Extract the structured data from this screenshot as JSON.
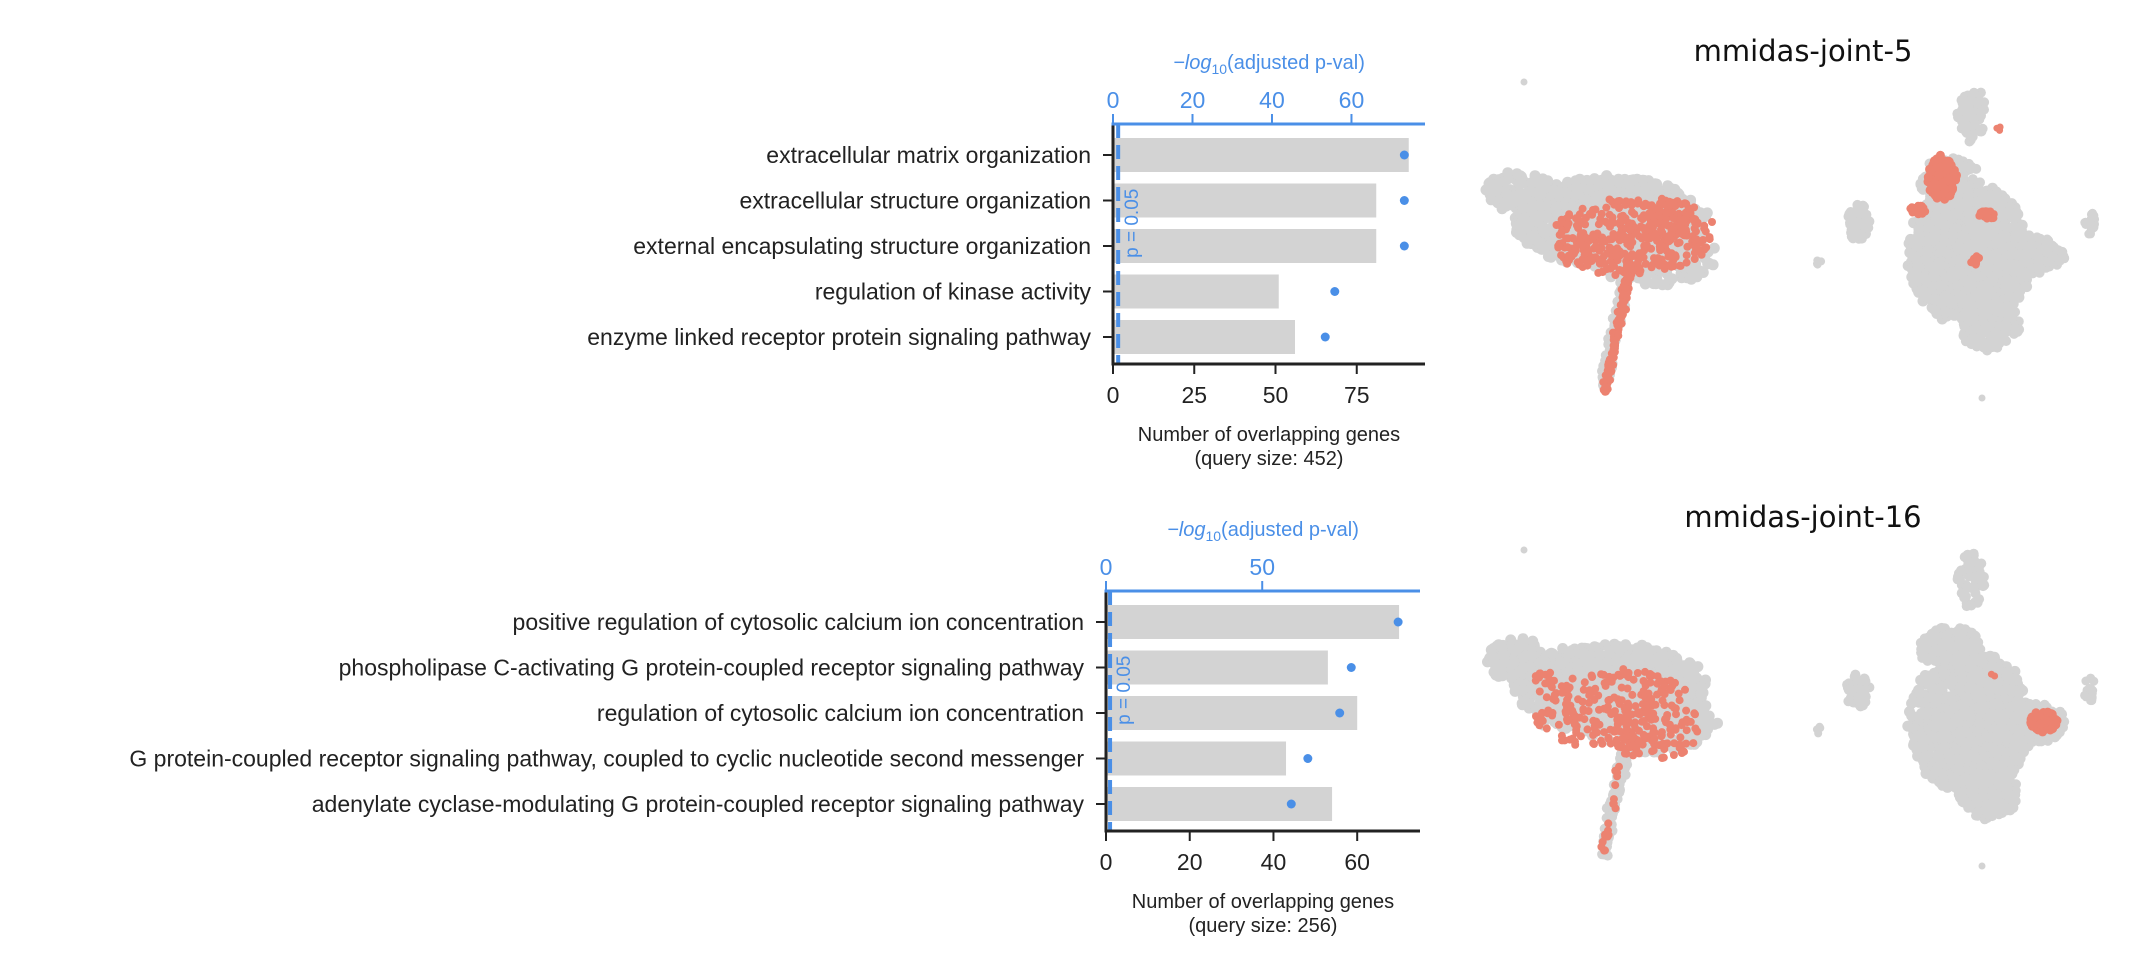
{
  "chart_data": [
    {
      "type": "bar",
      "categories": [
        "extracellular matrix organization",
        "extracellular structure organization",
        "external encapsulating structure organization",
        "regulation of kinase activity",
        "enzyme linked receptor protein signaling pathway"
      ],
      "values": [
        91,
        81,
        81,
        51,
        56
      ],
      "xlabel": "Number of overlapping genes",
      "xlabel_note": "(query size: 452)",
      "xlim": [
        0,
        96
      ],
      "xticks": [
        0,
        25,
        50,
        75
      ],
      "secondary_axis": {
        "label_prefix": "−log",
        "label_sub": "10",
        "label_suffix": "(adjusted p-val)",
        "xlim": [
          0,
          78.5
        ],
        "xticks": [
          0,
          20,
          40,
          60
        ],
        "values": [
          73.3,
          73.3,
          73.3,
          55.8,
          53.4
        ],
        "threshold_value": 1.3,
        "threshold_label": "p = 0.05",
        "color": "#4a8fe7"
      },
      "bar_color": "#d3d3d3",
      "grid": false
    },
    {
      "type": "bar",
      "categories": [
        "positive regulation of cytosolic calcium ion concentration",
        "phospholipase C-activating G protein-coupled receptor signaling pathway",
        "regulation of cytosolic calcium ion concentration",
        "G protein-coupled receptor signaling pathway, coupled to cyclic nucleotide second messenger",
        "adenylate cyclase-modulating G protein-coupled receptor signaling pathway"
      ],
      "values": [
        70,
        53,
        60,
        43,
        54
      ],
      "xlabel": "Number of overlapping genes",
      "xlabel_note": "(query size: 256)",
      "xlim": [
        0,
        75
      ],
      "xticks": [
        0,
        20,
        40,
        60
      ],
      "secondary_axis": {
        "label_prefix": "−log",
        "label_sub": "10",
        "label_suffix": "(adjusted p-val)",
        "xlim": [
          0,
          100.5
        ],
        "xticks": [
          0,
          50
        ],
        "values": [
          93.5,
          78.5,
          74.8,
          64.6,
          59.3
        ],
        "threshold_value": 1.3,
        "threshold_label": "p = 0.05",
        "color": "#4a8fe7"
      },
      "bar_color": "#d3d3d3",
      "grid": false
    },
    {
      "type": "scatter",
      "title": "mmidas-joint-5",
      "background_color": "#d3d3d3",
      "highlight_color": "#ec8270"
    },
    {
      "type": "scatter",
      "title": "mmidas-joint-16",
      "background_color": "#d3d3d3",
      "highlight_color": "#ec8270"
    }
  ]
}
